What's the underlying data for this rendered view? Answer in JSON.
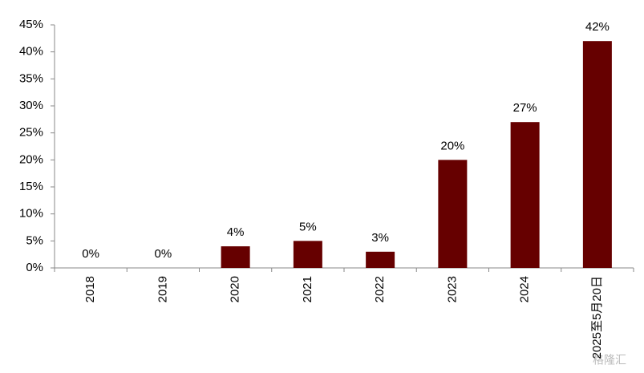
{
  "chart_data": {
    "type": "bar",
    "categories": [
      "2018",
      "2019",
      "2020",
      "2021",
      "2022",
      "2023",
      "2024",
      "2025至5月20日"
    ],
    "values": [
      0,
      0,
      4,
      5,
      3,
      20,
      27,
      42
    ],
    "value_labels": [
      "0%",
      "0%",
      "4%",
      "5%",
      "3%",
      "20%",
      "27%",
      "42%"
    ],
    "color": "#660000",
    "ylim": [
      0,
      45
    ],
    "yticks": [
      {
        "value": 0,
        "label": "0%"
      },
      {
        "value": 5,
        "label": "5%"
      },
      {
        "value": 10,
        "label": "10%"
      },
      {
        "value": 15,
        "label": "15%"
      },
      {
        "value": 20,
        "label": "20%"
      },
      {
        "value": 25,
        "label": "25%"
      },
      {
        "value": 30,
        "label": "30%"
      },
      {
        "value": 35,
        "label": "35%"
      },
      {
        "value": 40,
        "label": "40%"
      },
      {
        "value": 45,
        "label": "45%"
      }
    ],
    "grid": false,
    "watermark": "格隆汇"
  }
}
